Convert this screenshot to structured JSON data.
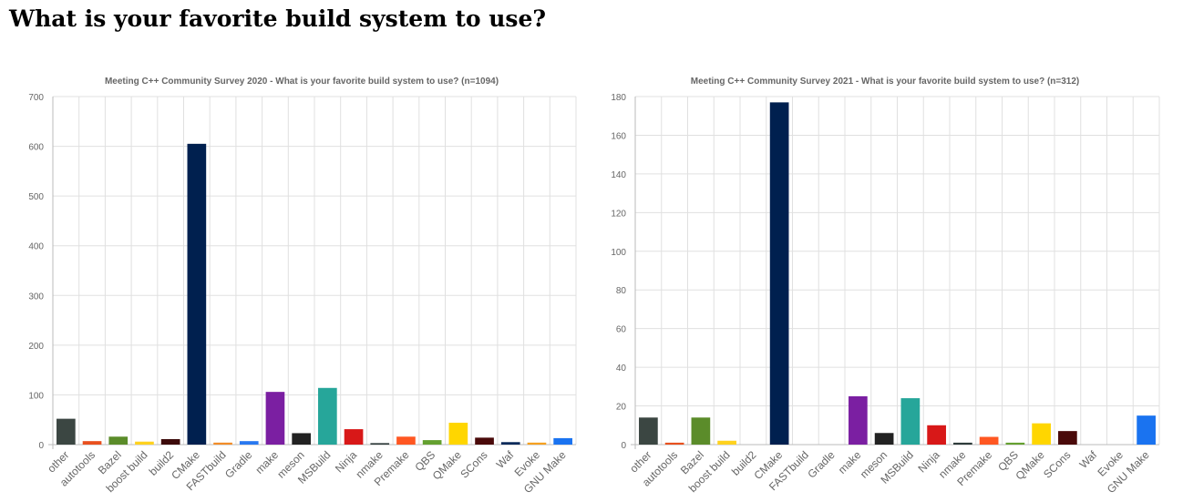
{
  "page": {
    "title": "What is your favorite build system to use?"
  },
  "chart_data": [
    {
      "type": "bar",
      "title": "Meeting C++ Community Survey 2020 - What is your favorite build system to use? (n=1094)",
      "xlabel": "",
      "ylabel": "",
      "ylim": [
        0,
        700
      ],
      "yticks": [
        0,
        100,
        200,
        300,
        400,
        500,
        600,
        700
      ],
      "grid": true,
      "legend": "none",
      "categories": [
        "other",
        "autotools",
        "Bazel",
        "boost build",
        "build2",
        "CMake",
        "FASTbuild",
        "Gradle",
        "make",
        "meson",
        "MSBuild",
        "Ninja",
        "nmake",
        "Premake",
        "QBS",
        "QMake",
        "SCons",
        "Waf",
        "Evoke",
        "GNU Make"
      ],
      "values": [
        52,
        7,
        16,
        6,
        11,
        605,
        4,
        7,
        106,
        23,
        114,
        31,
        3,
        16,
        9,
        44,
        14,
        5,
        4,
        13
      ],
      "colors": [
        "#3b4642",
        "#e8501e",
        "#5b8c2a",
        "#ffd21f",
        "#3c0a0a",
        "#00204f",
        "#f28c28",
        "#2878f0",
        "#7b1fa2",
        "#222222",
        "#26a69a",
        "#d81818",
        "#2e3b3a",
        "#ff5722",
        "#64a030",
        "#ffd600",
        "#4a0a0a",
        "#0a2a5a",
        "#f5a020",
        "#1a73f0"
      ]
    },
    {
      "type": "bar",
      "title": "Meeting C++ Community Survey 2021  - What is your favorite build system to use? (n=312)",
      "xlabel": "",
      "ylabel": "",
      "ylim": [
        0,
        180
      ],
      "yticks": [
        0,
        20,
        40,
        60,
        80,
        100,
        120,
        140,
        160,
        180
      ],
      "grid": true,
      "legend": "none",
      "categories": [
        "other",
        "autotools",
        "Bazel",
        "boost build",
        "build2",
        "CMake",
        "FASTbuild",
        "Gradle",
        "make",
        "meson",
        "MSBuild",
        "Ninja",
        "nmake",
        "Premake",
        "QBS",
        "QMake",
        "SCons",
        "Waf",
        "Evoke",
        "GNU Make"
      ],
      "values": [
        14,
        1,
        14,
        2,
        0,
        177,
        0,
        0,
        25,
        6,
        24,
        10,
        1,
        4,
        1,
        11,
        7,
        0,
        0,
        15
      ],
      "colors": [
        "#3b4642",
        "#e8501e",
        "#5b8c2a",
        "#ffd21f",
        "#3c0a0a",
        "#00204f",
        "#f28c28",
        "#2878f0",
        "#7b1fa2",
        "#222222",
        "#26a69a",
        "#d81818",
        "#2e3b3a",
        "#ff5722",
        "#64a030",
        "#ffd600",
        "#4a0a0a",
        "#0a2a5a",
        "#f5a020",
        "#1a73f0"
      ]
    }
  ]
}
